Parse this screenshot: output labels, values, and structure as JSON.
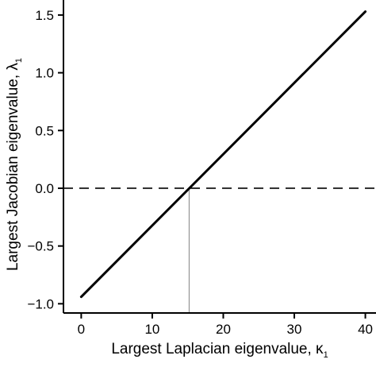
{
  "chart_data": {
    "type": "line",
    "title": "",
    "xlabel": "Largest Laplacian eigenvalue, κ",
    "xlabel_subscript": "1",
    "ylabel": "Largest Jacobian eigenvalue, λ",
    "ylabel_subscript": "1",
    "xlim": [
      -2.5,
      41.5
    ],
    "ylim": [
      -1.08,
      1.63
    ],
    "x_ticks": [
      0,
      10,
      20,
      30,
      40
    ],
    "x_tick_labels": [
      "0",
      "10",
      "20",
      "30",
      "40"
    ],
    "y_ticks": [
      -1.0,
      -0.5,
      0.0,
      0.5,
      1.0,
      1.5
    ],
    "y_tick_labels": [
      "−1.0",
      "−0.5",
      "0.0",
      "0.5",
      "1.0",
      "1.5"
    ],
    "grid": false,
    "series": [
      {
        "x": [
          0,
          40
        ],
        "y": [
          -0.94,
          1.53
        ],
        "color": "#000000",
        "style": "solid"
      }
    ],
    "reference_lines": [
      {
        "orientation": "horizontal",
        "y": 0.0,
        "style": "dashed",
        "color": "#000000"
      },
      {
        "orientation": "vertical",
        "x": 15.2,
        "y_from": -1.08,
        "y_to": 0.0,
        "style": "solid",
        "color": "#999999"
      }
    ]
  }
}
